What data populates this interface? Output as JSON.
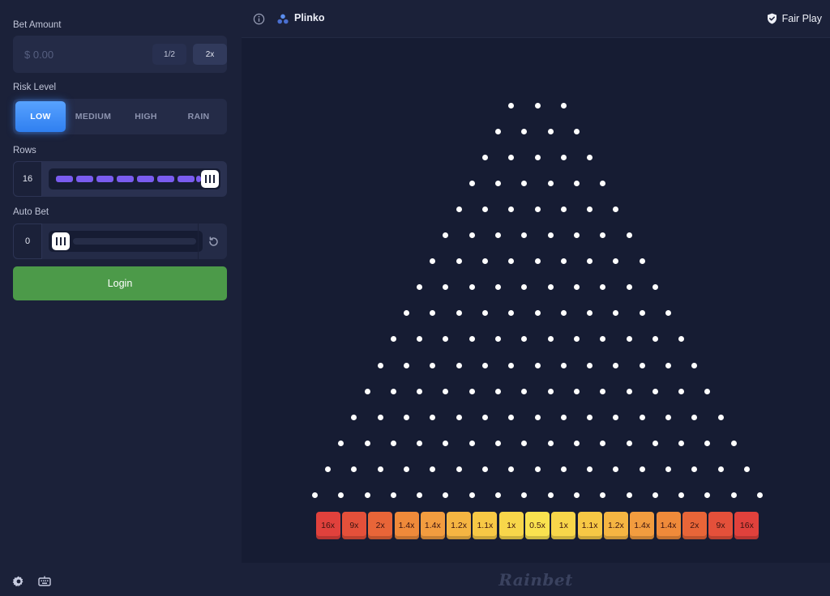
{
  "left_panel": {
    "bet_amount_label": "Bet Amount",
    "bet_placeholder": "$ 0.00",
    "half_label": "1/2",
    "double_label": "2x",
    "risk_label": "Risk Level",
    "risk_options": [
      "LOW",
      "MEDIUM",
      "HIGH",
      "RAIN"
    ],
    "risk_selected": "LOW",
    "rows_label": "Rows",
    "rows_value": "16",
    "auto_bet_label": "Auto Bet",
    "auto_bet_value": "0",
    "login_label": "Login"
  },
  "header": {
    "game_title": "Plinko",
    "fair_play_label": "Fair Play"
  },
  "board": {
    "top_row_pegs": 3,
    "peg_rows": 16,
    "multipliers": [
      "16x",
      "9x",
      "2x",
      "1.4x",
      "1.4x",
      "1.2x",
      "1.1x",
      "1x",
      "0.5x",
      "1x",
      "1.1x",
      "1.2x",
      "1.4x",
      "1.4x",
      "2x",
      "9x",
      "16x"
    ]
  },
  "footer": {
    "brand": "Rainbet"
  },
  "icons": {
    "info": "info-icon",
    "game": "plinko-dots-icon",
    "fair": "shield-check-icon",
    "reset": "refresh-icon",
    "settings": "gear-icon",
    "keyboard": "keyboard-icon"
  },
  "colors": {
    "accent_blue": "#3c8cff",
    "login_green": "#4c9a49",
    "slider_purple": "#7a5cf0",
    "mult_red": "#e0413c",
    "mult_orange": "#ef8a3a",
    "mult_yellow": "#f7d445"
  }
}
